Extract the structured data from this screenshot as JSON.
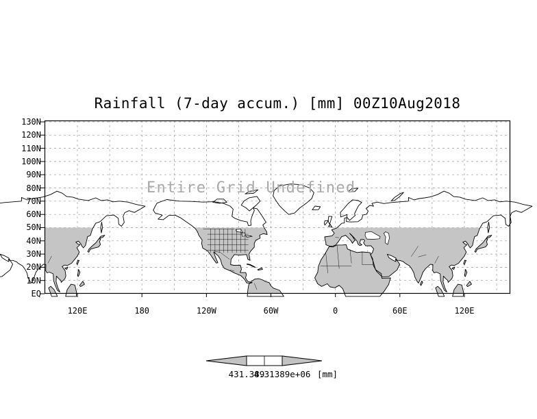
{
  "title": "Rainfall (7-day accum.) [mm] 00Z10Aug2018",
  "overlay_message": "Entire Grid Undefined",
  "y_axis": {
    "labels": [
      "130N",
      "120N",
      "110N",
      "100N",
      "90N",
      "80N",
      "70N",
      "60N",
      "50N",
      "40N",
      "30N",
      "20N",
      "10N",
      "EQ"
    ]
  },
  "x_axis": {
    "labels": [
      "120E",
      "180",
      "120W",
      "60W",
      "0",
      "60E",
      "120E"
    ]
  },
  "colorbar": {
    "tick_labels": [
      "431.389",
      "4.31389e+06"
    ],
    "unit": "[mm]"
  },
  "colors": {
    "land_fill": "#c5c5c5",
    "coastline": "#000000",
    "grid_line": "#999999",
    "frame": "#000000",
    "overlay_text": "#a9a9a9",
    "arrow_fill": "#c2c2c2"
  }
}
